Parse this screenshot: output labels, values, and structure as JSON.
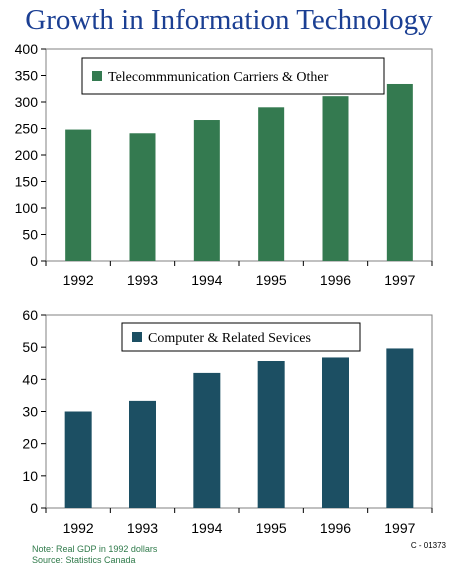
{
  "title": "Growth in Information Technology",
  "chart_data": [
    {
      "type": "bar",
      "categories": [
        "1992",
        "1993",
        "1994",
        "1995",
        "1996",
        "1997"
      ],
      "series": [
        {
          "name": "Telecommmunication Carriers & Other",
          "values": [
            248,
            241,
            266,
            290,
            311,
            334
          ],
          "color": "#347a50"
        }
      ],
      "ylim": [
        0,
        400
      ],
      "yticks": [
        0,
        50,
        100,
        150,
        200,
        250,
        300,
        350,
        400
      ],
      "grid": false,
      "legend": "top-left"
    },
    {
      "type": "bar",
      "categories": [
        "1992",
        "1993",
        "1994",
        "1995",
        "1996",
        "1997"
      ],
      "series": [
        {
          "name": "Computer & Related Sevices",
          "values": [
            30,
            33.3,
            42,
            45.7,
            46.8,
            49.6
          ],
          "color": "#1c4f63"
        }
      ],
      "ylim": [
        0,
        60
      ],
      "yticks": [
        0,
        10,
        20,
        30,
        40,
        50,
        60
      ],
      "grid": false,
      "legend": "top-left"
    }
  ],
  "notes": {
    "line1": "Note: Real GDP in 1992 dollars",
    "line2": "Source: Statistics Canada"
  },
  "code": "C - 01373"
}
